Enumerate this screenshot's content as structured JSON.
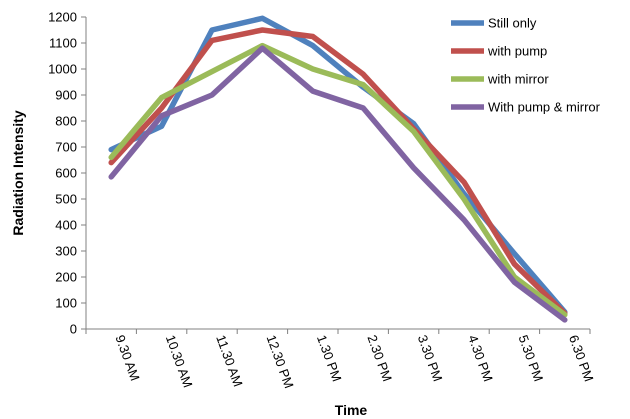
{
  "chart_data": {
    "type": "line",
    "title": "",
    "xlabel": "Time",
    "ylabel": "Radiation Intensity",
    "categories": [
      "9.30 AM",
      "10.30 AM",
      "11.30 AM",
      "12.30 PM",
      "1.30 PM",
      "2.30 PM",
      "3.30 PM",
      "4.30 PM",
      "5.30 PM",
      "6.30 PM"
    ],
    "ylim": [
      0,
      1200
    ],
    "yticks": [
      "0",
      "100",
      "200",
      "300",
      "400",
      "500",
      "600",
      "700",
      "800",
      "900",
      "1000",
      "1100",
      "1200"
    ],
    "grid": false,
    "legend_position": "top-right",
    "series": [
      {
        "name": "Still only",
        "color": "#4f81bd",
        "values": [
          690,
          780,
          1150,
          1195,
          1090,
          930,
          790,
          520,
          290,
          65
        ]
      },
      {
        "name": "with pump",
        "color": "#c0504d",
        "values": [
          640,
          850,
          1110,
          1150,
          1125,
          980,
          770,
          565,
          250,
          60
        ]
      },
      {
        "name": "with mirror",
        "color": "#9bbb59",
        "values": [
          660,
          890,
          990,
          1090,
          1000,
          940,
          760,
          500,
          200,
          55
        ]
      },
      {
        "name": "With pump & mirror",
        "color": "#8064a2",
        "values": [
          585,
          820,
          900,
          1080,
          915,
          850,
          620,
          420,
          180,
          35
        ]
      }
    ]
  }
}
